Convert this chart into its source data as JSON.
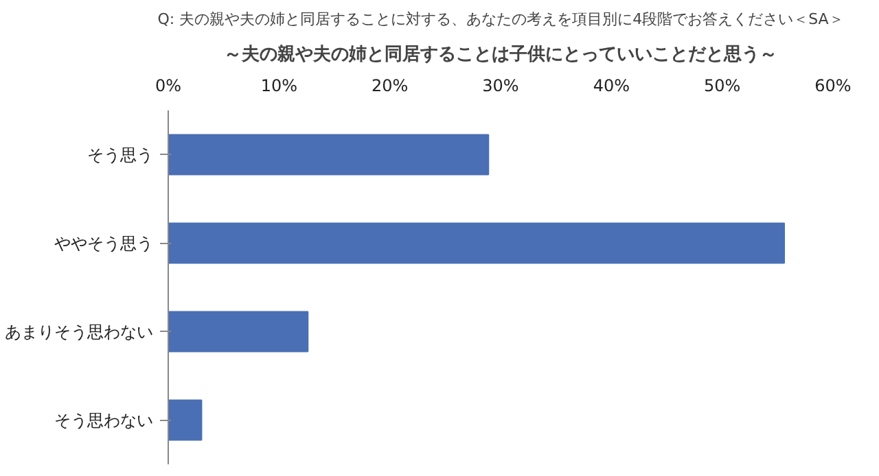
{
  "chart_data": {
    "type": "bar",
    "orientation": "horizontal",
    "title": "Q: 夫の親や夫の姉と同居することに対する、あなたの考えを項目別に4段階でお答えください＜SA＞",
    "subtitle": "～夫の親や夫の姉と同居することは子供にとっていいことだと思う～",
    "categories": [
      "そう思う",
      "ややそう思う",
      "あまりそう思わない",
      "そう思わない"
    ],
    "values": [
      28.9,
      55.6,
      12.6,
      3.0
    ],
    "color": "#4a6fb5",
    "xlim": [
      0,
      60
    ],
    "xticks": [
      {
        "value": 0,
        "label": "0%"
      },
      {
        "value": 10,
        "label": "10%"
      },
      {
        "value": 20,
        "label": "20%"
      },
      {
        "value": 30,
        "label": "30%"
      },
      {
        "value": 40,
        "label": "40%"
      },
      {
        "value": 50,
        "label": "50%"
      },
      {
        "value": 60,
        "label": "60%"
      }
    ],
    "grid": false
  }
}
